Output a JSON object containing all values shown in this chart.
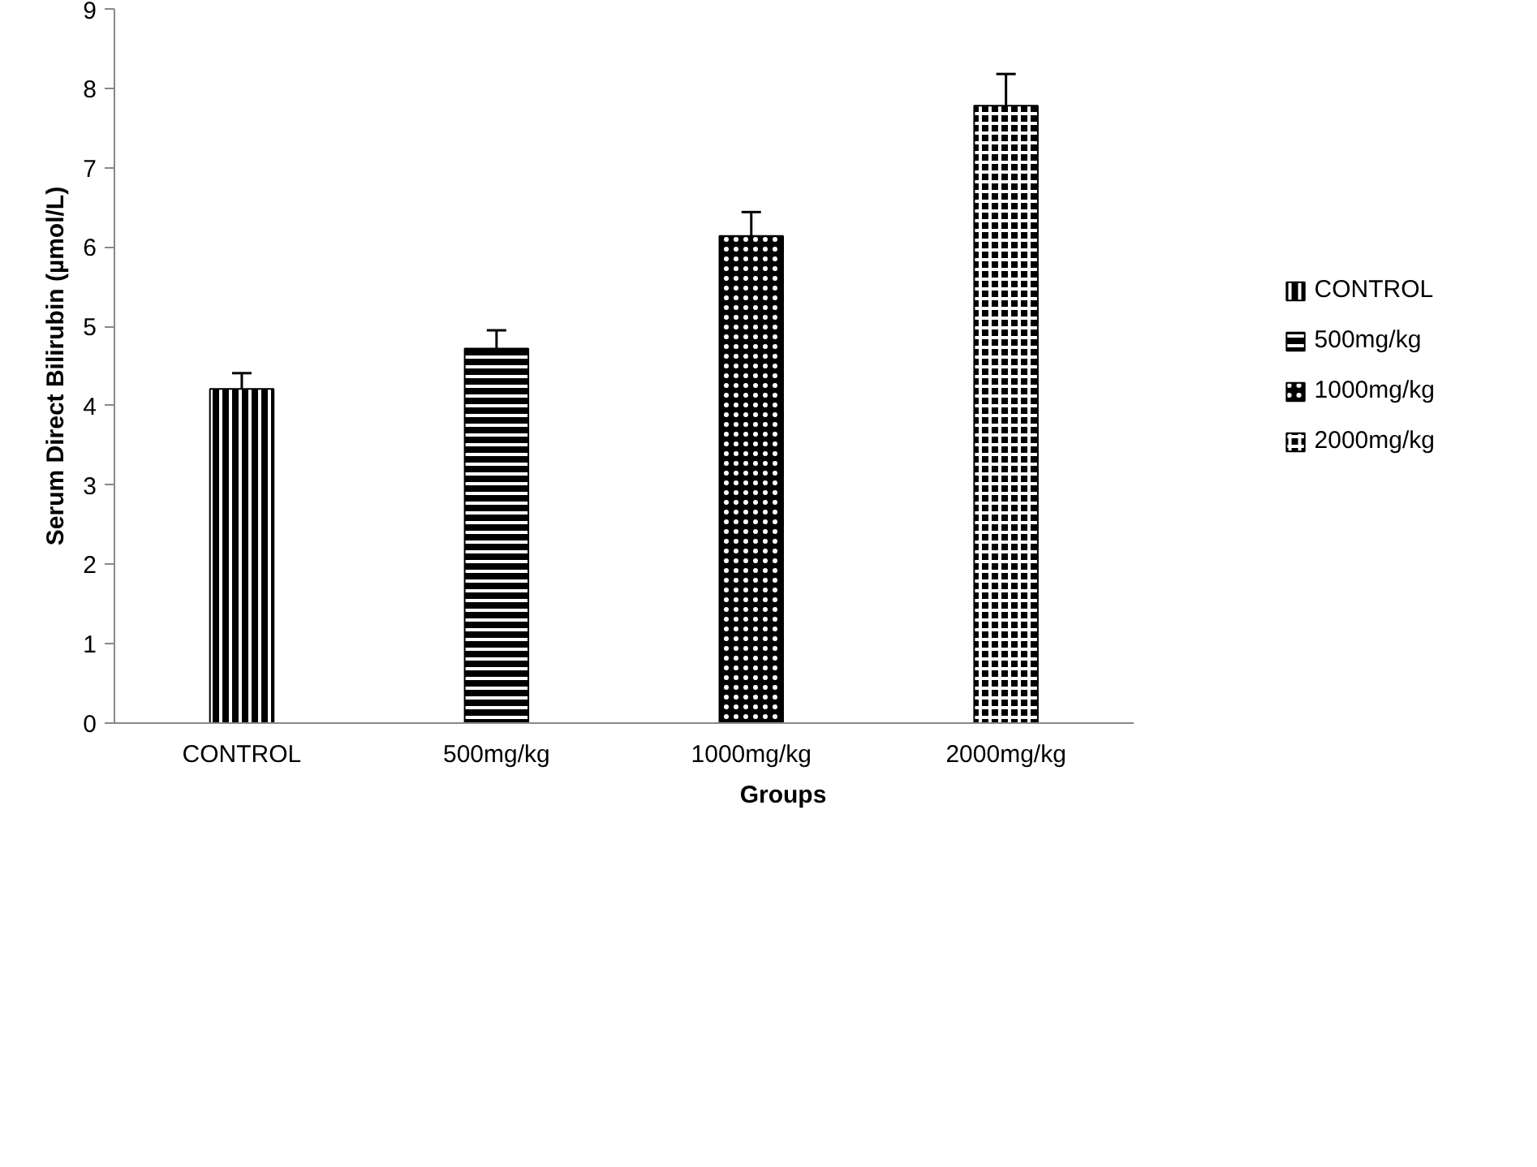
{
  "chart_data": {
    "type": "bar",
    "xlabel": "Groups",
    "ylabel": "Serum Direct Bilirubin (µmol/L)",
    "categories": [
      "CONTROL",
      "500mg/kg",
      "1000mg/kg",
      "2000mg/kg"
    ],
    "series": [
      {
        "name": "CONTROL",
        "color": "#000000",
        "values": [
          4.21,
          null,
          null,
          null
        ],
        "errors": [
          0.2,
          null,
          null,
          null
        ]
      },
      {
        "name": "500mg/kg",
        "color": "#000000",
        "values": [
          null,
          4.72,
          null,
          null
        ],
        "errors": [
          null,
          0.23,
          null,
          null
        ]
      },
      {
        "name": "1000mg/kg",
        "color": "#000000",
        "values": [
          null,
          null,
          6.14,
          null
        ],
        "errors": [
          null,
          null,
          0.3,
          null
        ]
      },
      {
        "name": "2000mg/kg",
        "color": "#000000",
        "values": [
          null,
          null,
          null,
          7.78
        ],
        "errors": [
          null,
          null,
          null,
          0.4
        ]
      }
    ],
    "ylim": [
      0,
      9
    ],
    "yticks": [
      0,
      1,
      2,
      3,
      4,
      5,
      6,
      7,
      8,
      9
    ],
    "grid": false,
    "legend": "right"
  }
}
